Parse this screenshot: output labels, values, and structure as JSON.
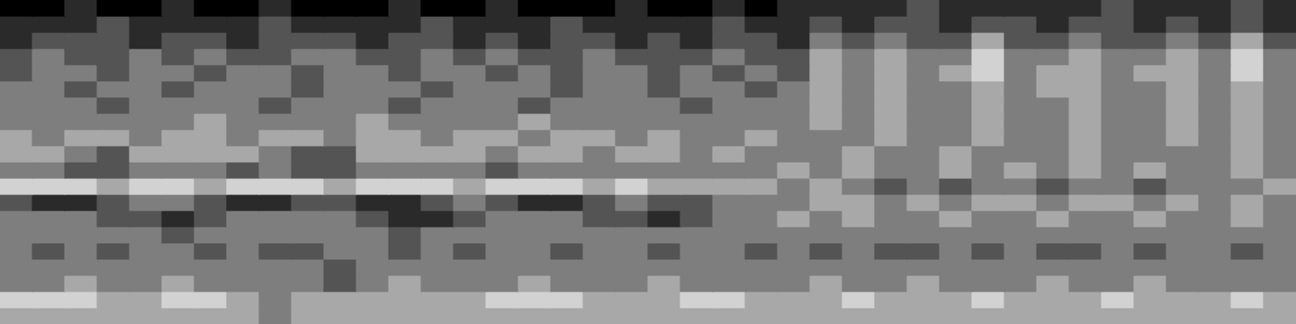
{
  "chart_data": {
    "type": "heatmap",
    "grid": false,
    "tick_labels": false,
    "cells": [
      [
        0,
        0,
        1,
        0,
        0,
        1,
        0,
        0,
        1,
        0,
        0,
        0,
        1,
        0,
        0,
        1,
        0,
        0,
        0,
        1,
        0,
        0,
        1,
        0,
        1,
        1,
        1,
        1,
        2,
        1,
        1,
        1,
        1,
        1,
        2,
        1,
        1,
        1,
        2,
        1
      ],
      [
        1,
        1,
        1,
        2,
        1,
        1,
        1,
        1,
        2,
        1,
        1,
        1,
        1,
        2,
        1,
        1,
        1,
        2,
        1,
        1,
        1,
        1,
        2,
        1,
        1,
        2,
        1,
        2,
        2,
        1,
        2,
        2,
        1,
        2,
        2,
        1,
        2,
        1,
        2,
        1
      ],
      [
        1,
        2,
        2,
        2,
        1,
        2,
        2,
        1,
        2,
        2,
        2,
        1,
        2,
        2,
        1,
        2,
        1,
        2,
        2,
        1,
        2,
        1,
        2,
        2,
        1,
        3,
        2,
        3,
        2,
        2,
        4,
        2,
        2,
        3,
        2,
        2,
        3,
        2,
        4,
        2
      ],
      [
        2,
        3,
        2,
        2,
        3,
        2,
        3,
        2,
        2,
        3,
        3,
        2,
        2,
        3,
        2,
        3,
        2,
        2,
        3,
        2,
        2,
        2,
        3,
        2,
        2,
        4,
        3,
        4,
        3,
        3,
        5,
        3,
        3,
        4,
        3,
        3,
        4,
        3,
        5,
        3
      ],
      [
        2,
        3,
        3,
        2,
        3,
        3,
        2,
        3,
        3,
        2,
        3,
        3,
        2,
        3,
        3,
        2,
        3,
        2,
        3,
        3,
        2,
        3,
        2,
        3,
        2,
        4,
        3,
        4,
        3,
        4,
        5,
        3,
        4,
        4,
        3,
        4,
        4,
        3,
        5,
        3
      ],
      [
        3,
        3,
        2,
        3,
        3,
        2,
        3,
        3,
        3,
        2,
        3,
        3,
        3,
        2,
        3,
        3,
        3,
        2,
        3,
        3,
        2,
        3,
        3,
        2,
        3,
        4,
        3,
        4,
        3,
        3,
        4,
        3,
        4,
        4,
        3,
        3,
        4,
        3,
        4,
        3
      ],
      [
        3,
        3,
        3,
        2,
        3,
        3,
        3,
        3,
        2,
        3,
        3,
        3,
        2,
        3,
        3,
        3,
        2,
        3,
        3,
        3,
        3,
        2,
        3,
        3,
        3,
        4,
        3,
        4,
        3,
        3,
        4,
        3,
        3,
        4,
        3,
        3,
        4,
        3,
        4,
        3
      ],
      [
        3,
        3,
        3,
        3,
        3,
        3,
        4,
        3,
        3,
        3,
        3,
        4,
        3,
        3,
        3,
        3,
        4,
        3,
        3,
        3,
        3,
        3,
        3,
        3,
        3,
        4,
        3,
        4,
        3,
        3,
        4,
        3,
        3,
        4,
        3,
        3,
        4,
        3,
        4,
        3
      ],
      [
        4,
        3,
        4,
        4,
        3,
        4,
        4,
        3,
        4,
        4,
        3,
        4,
        4,
        3,
        4,
        4,
        3,
        4,
        4,
        3,
        4,
        3,
        3,
        4,
        3,
        3,
        3,
        4,
        3,
        3,
        4,
        3,
        3,
        4,
        3,
        3,
        4,
        3,
        4,
        3
      ],
      [
        4,
        4,
        3,
        2,
        4,
        4,
        4,
        4,
        3,
        2,
        2,
        4,
        4,
        4,
        4,
        3,
        4,
        4,
        3,
        4,
        4,
        3,
        4,
        3,
        3,
        3,
        4,
        3,
        3,
        4,
        3,
        3,
        3,
        4,
        3,
        3,
        3,
        3,
        4,
        3
      ],
      [
        3,
        3,
        2,
        2,
        3,
        3,
        3,
        2,
        3,
        2,
        2,
        3,
        3,
        3,
        3,
        2,
        3,
        3,
        3,
        3,
        3,
        3,
        3,
        3,
        4,
        3,
        4,
        3,
        3,
        4,
        3,
        4,
        3,
        4,
        3,
        4,
        3,
        3,
        4,
        3
      ],
      [
        5,
        5,
        5,
        4,
        5,
        5,
        4,
        5,
        5,
        5,
        4,
        5,
        5,
        5,
        4,
        5,
        5,
        5,
        4,
        5,
        4,
        4,
        4,
        4,
        3,
        4,
        3,
        2,
        3,
        2,
        3,
        3,
        2,
        3,
        3,
        2,
        3,
        3,
        3,
        4
      ],
      [
        2,
        1,
        1,
        2,
        3,
        3,
        2,
        1,
        1,
        2,
        2,
        1,
        1,
        2,
        3,
        2,
        1,
        1,
        2,
        3,
        2,
        2,
        3,
        3,
        3,
        4,
        4,
        3,
        4,
        3,
        4,
        4,
        3,
        4,
        4,
        3,
        4,
        3,
        4,
        3
      ],
      [
        3,
        3,
        3,
        2,
        2,
        1,
        2,
        3,
        3,
        3,
        3,
        2,
        1,
        1,
        2,
        3,
        3,
        3,
        2,
        2,
        1,
        2,
        3,
        3,
        4,
        3,
        4,
        3,
        3,
        4,
        3,
        3,
        4,
        3,
        3,
        4,
        3,
        3,
        4,
        3
      ],
      [
        3,
        3,
        3,
        3,
        3,
        2,
        3,
        3,
        3,
        3,
        3,
        3,
        2,
        3,
        3,
        3,
        3,
        3,
        3,
        3,
        3,
        3,
        3,
        3,
        3,
        3,
        3,
        3,
        3,
        3,
        3,
        3,
        3,
        3,
        3,
        3,
        3,
        3,
        3,
        3
      ],
      [
        3,
        2,
        3,
        2,
        3,
        3,
        2,
        3,
        2,
        2,
        3,
        3,
        2,
        3,
        2,
        3,
        3,
        2,
        3,
        3,
        2,
        3,
        3,
        2,
        3,
        2,
        3,
        2,
        2,
        3,
        2,
        3,
        2,
        2,
        3,
        2,
        3,
        3,
        2,
        3
      ],
      [
        3,
        3,
        3,
        3,
        3,
        3,
        3,
        3,
        3,
        3,
        2,
        3,
        3,
        3,
        3,
        3,
        3,
        3,
        3,
        3,
        3,
        3,
        3,
        3,
        3,
        3,
        3,
        3,
        3,
        3,
        3,
        3,
        3,
        3,
        3,
        3,
        3,
        3,
        3,
        3
      ],
      [
        3,
        3,
        4,
        3,
        3,
        4,
        3,
        3,
        3,
        3,
        2,
        3,
        4,
        3,
        3,
        3,
        4,
        3,
        3,
        3,
        4,
        3,
        3,
        3,
        3,
        4,
        3,
        3,
        4,
        3,
        3,
        3,
        4,
        3,
        3,
        4,
        3,
        3,
        3,
        3
      ],
      [
        5,
        5,
        5,
        4,
        4,
        5,
        5,
        4,
        3,
        4,
        4,
        4,
        4,
        4,
        4,
        5,
        5,
        5,
        4,
        4,
        4,
        5,
        5,
        4,
        4,
        4,
        5,
        4,
        4,
        4,
        5,
        4,
        4,
        4,
        5,
        4,
        4,
        4,
        5,
        4
      ],
      [
        4,
        4,
        4,
        4,
        4,
        4,
        4,
        4,
        3,
        4,
        4,
        4,
        4,
        4,
        4,
        4,
        4,
        4,
        4,
        4,
        4,
        4,
        4,
        4,
        4,
        4,
        4,
        4,
        4,
        4,
        4,
        4,
        4,
        4,
        4,
        4,
        4,
        4,
        4,
        4
      ]
    ]
  }
}
